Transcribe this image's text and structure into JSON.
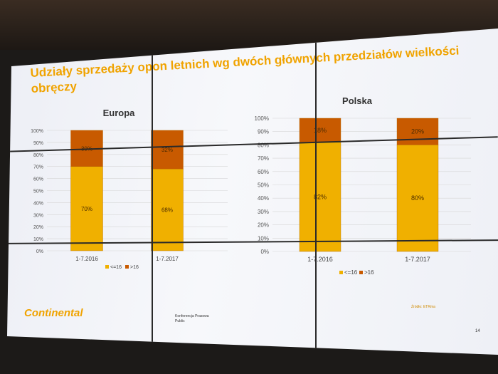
{
  "slide": {
    "title": "Udziały sprzedaży opon letnich wg dwóch głównych przedziałów wielkości obręczy",
    "logo": "Continental",
    "footer_line1": "Konferencja Prasowa",
    "footer_line2": "Public",
    "source": "Źródło: ETRma",
    "page_number": "14"
  },
  "colors": {
    "accent": "#f0a300",
    "segment_low": "#f0b000",
    "segment_high": "#c85a00"
  },
  "chart_data": [
    {
      "type": "bar",
      "stacked": true,
      "percent": true,
      "title": "Europa",
      "categories": [
        "1-7.2016",
        "1-7.2017"
      ],
      "series": [
        {
          "name": "<=16",
          "values": [
            70,
            68
          ],
          "labels": [
            "70%",
            "68%"
          ]
        },
        {
          "name": ">16",
          "values": [
            30,
            32
          ],
          "labels": [
            "30%",
            "32%"
          ]
        }
      ],
      "ylim": [
        0,
        100
      ],
      "yticks": [
        "0%",
        "10%",
        "20%",
        "30%",
        "40%",
        "50%",
        "60%",
        "70%",
        "80%",
        "90%",
        "100%"
      ],
      "grid": true,
      "legend": "bottom"
    },
    {
      "type": "bar",
      "stacked": true,
      "percent": true,
      "title": "Polska",
      "categories": [
        "1-7.2016",
        "1-7.2017"
      ],
      "series": [
        {
          "name": "<=16",
          "values": [
            82,
            80
          ],
          "labels": [
            "82%",
            "80%"
          ]
        },
        {
          "name": ">16",
          "values": [
            18,
            20
          ],
          "labels": [
            "18%",
            "20%"
          ]
        }
      ],
      "ylim": [
        0,
        100
      ],
      "yticks": [
        "0%",
        "10%",
        "20%",
        "30%",
        "40%",
        "50%",
        "60%",
        "70%",
        "80%",
        "90%",
        "100%"
      ],
      "grid": true,
      "legend": "bottom"
    }
  ]
}
